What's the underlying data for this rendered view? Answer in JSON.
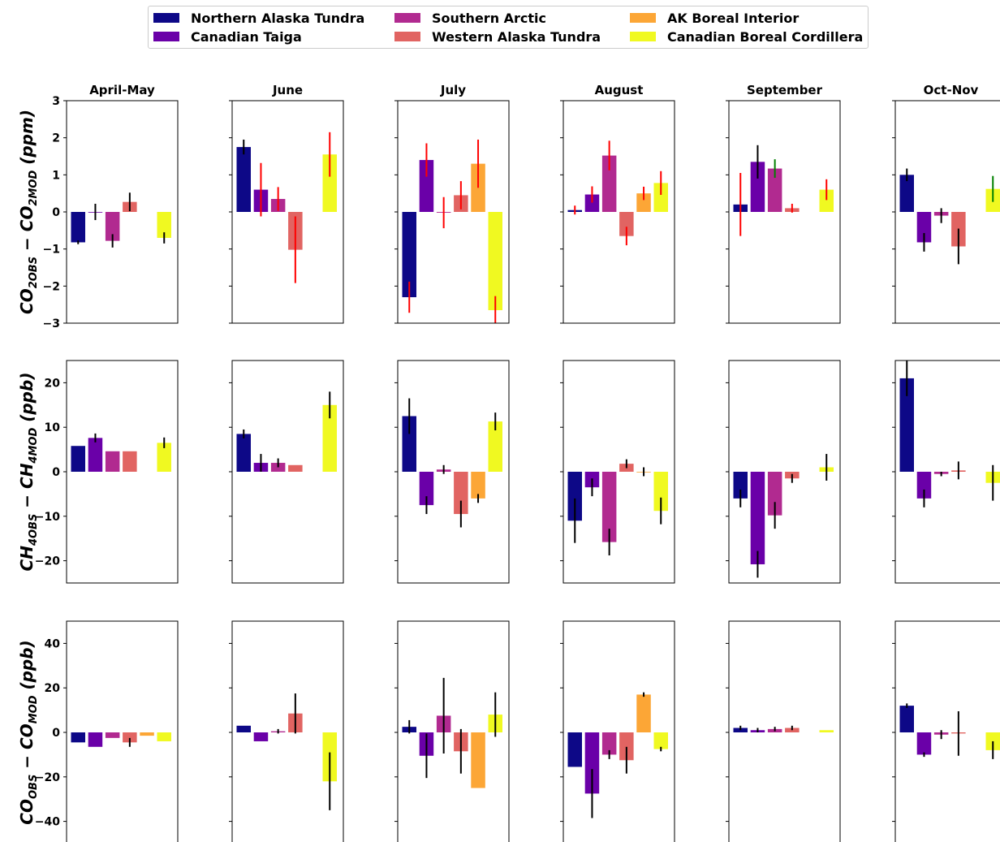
{
  "chart_data": {
    "type": "bar",
    "columns": [
      "April-May",
      "June",
      "July",
      "August",
      "September",
      "Oct-Nov"
    ],
    "series": [
      {
        "name": "Northern Alaska Tundra",
        "color": "#0d0887"
      },
      {
        "name": "Canadian Taiga",
        "color": "#6a00a8"
      },
      {
        "name": "Southern Arctic",
        "color": "#b12a90"
      },
      {
        "name": "Western Alaska Tundra",
        "color": "#e16462"
      },
      {
        "name": "AK Boreal Interior",
        "color": "#fca636"
      },
      {
        "name": "Canadian Boreal Cordillera",
        "color": "#f0f921"
      }
    ],
    "legend_order": [
      0,
      2,
      4,
      1,
      3,
      5
    ],
    "legend_position": "top-center",
    "rows": [
      {
        "ylabel_main": "CO",
        "ylabel_sub1": "2OBS",
        "ylabel_mid": " − CO",
        "ylabel_sub2": "2MOD",
        "ylabel_unit": " (ppm)",
        "ylim": [
          -3,
          3
        ],
        "yticks": [
          -3,
          -2,
          -1,
          0,
          1,
          2,
          3
        ],
        "ytick_labels": [
          "−3",
          "−2",
          "−1",
          "0",
          "1",
          "2",
          "3"
        ],
        "panels": [
          {
            "values": [
              -0.82,
              0.0,
              -0.78,
              0.27,
              null,
              -0.7
            ],
            "errors": [
              0.05,
              0.22,
              0.18,
              0.25,
              null,
              0.15
            ],
            "error_colors": [
              "black",
              "black",
              "black",
              "black",
              "black",
              "black"
            ]
          },
          {
            "values": [
              1.75,
              0.6,
              0.35,
              -1.02,
              null,
              1.55
            ],
            "errors": [
              0.2,
              0.72,
              0.32,
              0.9,
              null,
              0.6
            ],
            "error_colors": [
              "black",
              "red",
              "red",
              "red",
              "red",
              "red"
            ]
          },
          {
            "values": [
              -2.3,
              1.4,
              -0.02,
              0.45,
              1.3,
              -2.65
            ],
            "errors": [
              0.42,
              0.45,
              0.42,
              0.38,
              0.65,
              0.38
            ],
            "error_colors": [
              "red",
              "red",
              "red",
              "red",
              "red",
              "red"
            ]
          },
          {
            "values": [
              0.05,
              0.47,
              1.52,
              -0.65,
              0.5,
              0.78
            ],
            "errors": [
              0.12,
              0.22,
              0.4,
              0.25,
              0.18,
              0.32
            ],
            "error_colors": [
              "red",
              "red",
              "red",
              "red",
              "red",
              "red"
            ]
          },
          {
            "values": [
              0.2,
              1.35,
              1.17,
              0.1,
              null,
              0.6
            ],
            "errors": [
              0.85,
              0.45,
              0.25,
              0.12,
              null,
              0.28
            ],
            "error_colors": [
              "red",
              "black",
              "green",
              "red",
              "red",
              "red"
            ]
          },
          {
            "values": [
              1.0,
              -0.82,
              -0.1,
              -0.93,
              null,
              0.62
            ],
            "errors": [
              0.17,
              0.25,
              0.2,
              0.48,
              null,
              0.35
            ],
            "error_colors": [
              "black",
              "black",
              "black",
              "black",
              "black",
              "green"
            ]
          }
        ]
      },
      {
        "ylabel_main": "CH",
        "ylabel_sub1": "4OBS",
        "ylabel_mid": " − CH",
        "ylabel_sub2": "4MOD",
        "ylabel_unit": " (ppb)",
        "ylim": [
          -25,
          25
        ],
        "yticks": [
          -20,
          -10,
          0,
          10,
          20
        ],
        "ytick_labels": [
          "−20",
          "−10",
          "0",
          "10",
          "20"
        ],
        "panels": [
          {
            "values": [
              5.8,
              7.6,
              4.6,
              4.6,
              null,
              6.5
            ],
            "errors": [
              null,
              1.0,
              null,
              null,
              null,
              1.2
            ],
            "error_colors": [
              "black",
              "black",
              "black",
              "black",
              "black",
              "black"
            ]
          },
          {
            "values": [
              8.5,
              2.0,
              2.0,
              1.5,
              null,
              15.0
            ],
            "errors": [
              1.0,
              2.0,
              1.0,
              null,
              null,
              3.0
            ],
            "error_colors": [
              "black",
              "black",
              "black",
              "black",
              "black",
              "black"
            ]
          },
          {
            "values": [
              12.5,
              -7.5,
              0.5,
              -9.5,
              -6.0,
              11.3
            ],
            "errors": [
              4.0,
              2.0,
              1.0,
              3.0,
              1.0,
              2.0
            ],
            "error_colors": [
              "black",
              "black",
              "black",
              "black",
              "black",
              "black"
            ]
          },
          {
            "values": [
              -11.0,
              -3.5,
              -15.8,
              1.8,
              0.0,
              -8.8
            ],
            "errors": [
              5.0,
              2.0,
              3.0,
              1.0,
              1.0,
              3.0
            ],
            "error_colors": [
              "black",
              "black",
              "black",
              "black",
              "black",
              "black"
            ]
          },
          {
            "values": [
              -6.0,
              -20.8,
              -9.8,
              -1.5,
              null,
              1.0
            ],
            "errors": [
              2.0,
              3.0,
              3.0,
              1.0,
              null,
              3.0
            ],
            "error_colors": [
              "black",
              "black",
              "black",
              "black",
              "black",
              "black"
            ]
          },
          {
            "values": [
              21.0,
              -6.0,
              -0.5,
              0.3,
              null,
              -2.5
            ],
            "errors": [
              4.0,
              2.0,
              0.5,
              2.0,
              null,
              4.0
            ],
            "error_colors": [
              "black",
              "black",
              "black",
              "black",
              "black",
              "black"
            ]
          }
        ]
      },
      {
        "ylabel_main": "CO",
        "ylabel_sub1": "OBS",
        "ylabel_mid": " − CO",
        "ylabel_sub2": "MOD",
        "ylabel_unit": " (ppb)",
        "ylim": [
          -50,
          50
        ],
        "yticks": [
          -40,
          -20,
          0,
          20,
          40
        ],
        "ytick_labels": [
          "−40",
          "−20",
          "0",
          "20",
          "40"
        ],
        "panels": [
          {
            "values": [
              -4.5,
              -6.5,
              -2.5,
              -4.5,
              -1.5,
              -4.0
            ],
            "errors": [
              null,
              null,
              null,
              2.0,
              null,
              null
            ],
            "error_colors": [
              "black",
              "black",
              "black",
              "black",
              "black",
              "black"
            ]
          },
          {
            "values": [
              3.0,
              -4.0,
              0.5,
              8.5,
              null,
              -22.0
            ],
            "errors": [
              null,
              null,
              1.0,
              9.0,
              null,
              13.0
            ],
            "error_colors": [
              "black",
              "black",
              "black",
              "black",
              "black",
              "black"
            ]
          },
          {
            "values": [
              2.5,
              -10.5,
              7.5,
              -8.5,
              -25.0,
              8.0
            ],
            "errors": [
              3.0,
              10.0,
              17.0,
              10.0,
              null,
              10.0
            ],
            "error_colors": [
              "black",
              "black",
              "black",
              "black",
              "black",
              "black"
            ]
          },
          {
            "values": [
              -15.5,
              -27.5,
              -10.0,
              -12.5,
              17.0,
              -7.5
            ],
            "errors": [
              null,
              11.0,
              2.0,
              6.0,
              1.0,
              1.0
            ],
            "error_colors": [
              "black",
              "black",
              "black",
              "black",
              "black",
              "black"
            ]
          },
          {
            "values": [
              2.0,
              1.0,
              1.5,
              2.0,
              null,
              1.0
            ],
            "errors": [
              1.0,
              1.0,
              1.0,
              1.0,
              null,
              null
            ],
            "error_colors": [
              "black",
              "black",
              "black",
              "black",
              "black",
              "black"
            ]
          },
          {
            "values": [
              12.0,
              -10.0,
              -1.0,
              -0.5,
              null,
              -8.0
            ],
            "errors": [
              1.0,
              1.0,
              2.0,
              10.0,
              null,
              4.0
            ],
            "error_colors": [
              "black",
              "black",
              "black",
              "black",
              "black",
              "black"
            ]
          }
        ]
      }
    ]
  }
}
